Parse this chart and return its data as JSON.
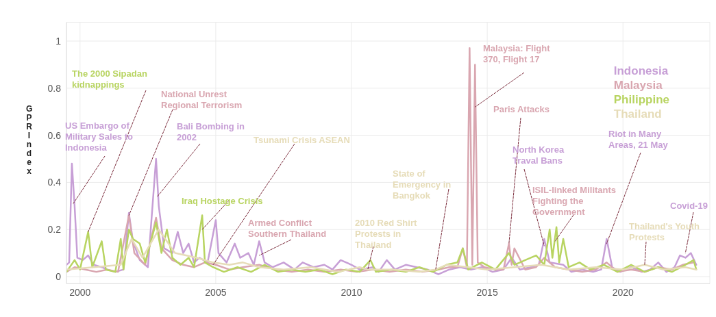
{
  "chart_data": {
    "type": "line",
    "ylabel": "GPR Index",
    "xlim": [
      1999.5,
      2023.2
    ],
    "xticks": [
      2000,
      2005,
      2010,
      2015,
      2020
    ],
    "ylim": [
      -0.03,
      1.08
    ],
    "yticks": [
      0,
      0.2,
      0.4,
      0.6,
      0.8,
      1
    ],
    "grid": true,
    "legend": "top right",
    "marker": "none",
    "line_style": "solid",
    "series": [
      {
        "name": "Indonesia",
        "color": "#c79fd6",
        "x": [
          1999.5,
          1999.6,
          1999.7,
          1999.8,
          1999.9,
          2000.1,
          2000.3,
          2000.5,
          2000.8,
          2001.0,
          2001.3,
          2001.6,
          2001.8,
          2001.95,
          2002.2,
          2002.5,
          2002.8,
          2002.9,
          2003.1,
          2003.4,
          2003.6,
          2003.8,
          2004.0,
          2004.2,
          2004.4,
          2004.7,
          2005.0,
          2005.1,
          2005.4,
          2005.7,
          2005.9,
          2006.2,
          2006.4,
          2006.6,
          2006.8,
          2007.1,
          2007.5,
          2007.9,
          2008.2,
          2008.6,
          2009.0,
          2009.3,
          2009.6,
          2010.0,
          2010.3,
          2010.8,
          2011.0,
          2011.3,
          2011.6,
          2012.0,
          2012.4,
          2012.8,
          2013.2,
          2013.6,
          2014.0,
          2014.4,
          2014.8,
          2015.2,
          2015.6,
          2015.9,
          2016.2,
          2016.6,
          2016.9,
          2017.1,
          2017.3,
          2017.8,
          2018.1,
          2018.5,
          2018.9,
          2019.2,
          2019.4,
          2019.6,
          2019.9,
          2020.3,
          2020.7,
          2021.0,
          2021.3,
          2021.6,
          2021.9,
          2022.1,
          2022.3,
          2022.5,
          2022.7
        ],
        "values": [
          0.05,
          0.06,
          0.48,
          0.3,
          0.08,
          0.07,
          0.09,
          0.05,
          0.04,
          0.03,
          0.02,
          0.03,
          0.27,
          0.15,
          0.07,
          0.04,
          0.5,
          0.3,
          0.12,
          0.1,
          0.19,
          0.1,
          0.14,
          0.06,
          0.08,
          0.06,
          0.24,
          0.1,
          0.06,
          0.14,
          0.08,
          0.1,
          0.05,
          0.15,
          0.06,
          0.04,
          0.06,
          0.03,
          0.06,
          0.04,
          0.05,
          0.03,
          0.07,
          0.05,
          0.03,
          0.04,
          0.02,
          0.07,
          0.03,
          0.05,
          0.04,
          0.03,
          0.01,
          0.03,
          0.04,
          0.03,
          0.04,
          0.02,
          0.03,
          0.08,
          0.03,
          0.04,
          0.05,
          0.16,
          0.06,
          0.05,
          0.02,
          0.03,
          0.02,
          0.03,
          0.16,
          0.04,
          0.02,
          0.04,
          0.02,
          0.03,
          0.06,
          0.02,
          0.04,
          0.09,
          0.08,
          0.1,
          0.05
        ]
      },
      {
        "name": "Malaysia",
        "color": "#d9a6b0",
        "x": [
          1999.5,
          1999.8,
          2000.2,
          2000.6,
          2001.0,
          2001.4,
          2001.8,
          2002.0,
          2002.4,
          2002.8,
          2003.0,
          2003.4,
          2003.8,
          2004.2,
          2004.6,
          2005.0,
          2005.5,
          2006.0,
          2006.6,
          2007.2,
          2007.8,
          2008.4,
          2009.0,
          2009.6,
          2010.2,
          2010.8,
          2011.4,
          2012.0,
          2012.6,
          2013.2,
          2013.6,
          2013.9,
          2014.1,
          2014.25,
          2014.35,
          2014.45,
          2014.55,
          2014.65,
          2014.9,
          2015.3,
          2015.6,
          2015.8,
          2015.9,
          2016.0,
          2016.4,
          2016.8,
          2017.1,
          2017.5,
          2018.0,
          2018.5,
          2019.0,
          2019.4,
          2019.8,
          2020.3,
          2020.8,
          2021.3,
          2021.8,
          2022.2,
          2022.6
        ],
        "values": [
          0.02,
          0.04,
          0.03,
          0.02,
          0.03,
          0.02,
          0.26,
          0.1,
          0.05,
          0.25,
          0.12,
          0.07,
          0.05,
          0.04,
          0.06,
          0.05,
          0.03,
          0.04,
          0.05,
          0.03,
          0.02,
          0.03,
          0.02,
          0.03,
          0.02,
          0.03,
          0.02,
          0.03,
          0.02,
          0.03,
          0.04,
          0.04,
          0.12,
          0.04,
          0.97,
          0.05,
          0.9,
          0.06,
          0.04,
          0.03,
          0.03,
          0.14,
          0.05,
          0.12,
          0.03,
          0.04,
          0.08,
          0.04,
          0.03,
          0.02,
          0.03,
          0.06,
          0.02,
          0.03,
          0.02,
          0.04,
          0.03,
          0.05,
          0.06
        ]
      },
      {
        "name": "Philippine",
        "color": "#b8d461",
        "x": [
          1999.5,
          1999.8,
          2000.0,
          2000.3,
          2000.45,
          2000.8,
          2000.95,
          2001.3,
          2001.5,
          2001.6,
          2001.8,
          2001.95,
          2002.2,
          2002.4,
          2002.8,
          2003.0,
          2003.2,
          2003.4,
          2003.7,
          2004.0,
          2004.2,
          2004.5,
          2004.6,
          2004.9,
          2005.3,
          2005.8,
          2006.3,
          2006.8,
          2007.3,
          2007.8,
          2008.3,
          2008.8,
          2009.3,
          2009.8,
          2010.3,
          2010.7,
          2010.9,
          2011.5,
          2012.0,
          2012.5,
          2013.0,
          2013.5,
          2013.9,
          2014.1,
          2014.3,
          2014.8,
          2015.3,
          2015.8,
          2016.0,
          2016.4,
          2016.8,
          2017.1,
          2017.3,
          2017.4,
          2017.55,
          2017.65,
          2017.8,
          2018.0,
          2018.4,
          2018.8,
          2019.3,
          2019.8,
          2020.3,
          2020.8,
          2021.3,
          2021.8,
          2022.3,
          2022.6,
          2022.7
        ],
        "values": [
          0.02,
          0.07,
          0.03,
          0.19,
          0.04,
          0.15,
          0.03,
          0.02,
          0.16,
          0.03,
          0.2,
          0.16,
          0.14,
          0.06,
          0.23,
          0.1,
          0.2,
          0.08,
          0.05,
          0.08,
          0.04,
          0.26,
          0.06,
          0.04,
          0.02,
          0.04,
          0.02,
          0.05,
          0.02,
          0.03,
          0.02,
          0.03,
          0.01,
          0.03,
          0.02,
          0.07,
          0.02,
          0.03,
          0.02,
          0.04,
          0.02,
          0.05,
          0.06,
          0.12,
          0.03,
          0.06,
          0.03,
          0.1,
          0.05,
          0.07,
          0.09,
          0.05,
          0.2,
          0.08,
          0.21,
          0.06,
          0.16,
          0.04,
          0.06,
          0.03,
          0.05,
          0.02,
          0.05,
          0.02,
          0.04,
          0.02,
          0.05,
          0.07,
          0.03
        ]
      },
      {
        "name": "Thailand",
        "color": "#e6dcb8",
        "x": [
          1999.5,
          2000.5,
          2001.5,
          2001.9,
          2002.3,
          2002.9,
          2003.5,
          2004.3,
          2004.9,
          2005.5,
          2006.0,
          2006.6,
          2007.5,
          2008.5,
          2009.5,
          2010.3,
          2010.6,
          2011.5,
          2012.5,
          2013.1,
          2013.5,
          2014.3,
          2015.0,
          2016.0,
          2017.0,
          2018.0,
          2019.0,
          2020.0,
          2020.8,
          2021.5,
          2022.3,
          2022.7
        ],
        "values": [
          0.03,
          0.04,
          0.05,
          0.16,
          0.08,
          0.2,
          0.1,
          0.08,
          0.06,
          0.05,
          0.06,
          0.04,
          0.03,
          0.04,
          0.02,
          0.04,
          0.03,
          0.03,
          0.02,
          0.03,
          0.05,
          0.04,
          0.03,
          0.04,
          0.05,
          0.03,
          0.04,
          0.03,
          0.05,
          0.03,
          0.04,
          0.03
        ]
      }
    ],
    "annotations": [
      {
        "text": "US Embargo of Military Sales to Indonesia",
        "x": 1999.75,
        "y": 0.31
      },
      {
        "text": "The 2000 Sipadan kidnappings",
        "x": 2000.3,
        "y": 0.19
      },
      {
        "text": "National Unrest Regional Terrorism",
        "x": 2001.8,
        "y": 0.26
      },
      {
        "text": "Bali Bombing in 2002",
        "x": 2002.85,
        "y": 0.34
      },
      {
        "text": "Tsunami Crisis ASEAN",
        "x": 2004.9,
        "y": 0.05
      },
      {
        "text": "Iraq Hostage Crisis",
        "x": 2004.5,
        "y": 0.2
      },
      {
        "text": "Armed Conflict Southern Thailand",
        "x": 2006.6,
        "y": 0.09
      },
      {
        "text": "2010 Red Shirt Protests in Thailand",
        "x": 2010.6,
        "y": 0.03
      },
      {
        "text": "State of Emergency in Bangkok",
        "x": 2013.1,
        "y": 0.03
      },
      {
        "text": "Malaysia: Flight 370, Flight 17",
        "x": 2014.55,
        "y": 0.72
      },
      {
        "text": "Paris Attacks",
        "x": 2015.8,
        "y": 0.14
      },
      {
        "text": "North Korea Traval Bans",
        "x": 2017.1,
        "y": 0.13
      },
      {
        "text": "ISIL-linked Militants Fighting the Government",
        "x": 2017.5,
        "y": 0.15
      },
      {
        "text": "Riot in Many Areas, 21 May",
        "x": 2019.4,
        "y": 0.14
      },
      {
        "text": "Thailand's Youth Protests",
        "x": 2020.8,
        "y": 0.05
      },
      {
        "text": "Covid-19",
        "x": 2022.3,
        "y": 0.1
      }
    ]
  }
}
